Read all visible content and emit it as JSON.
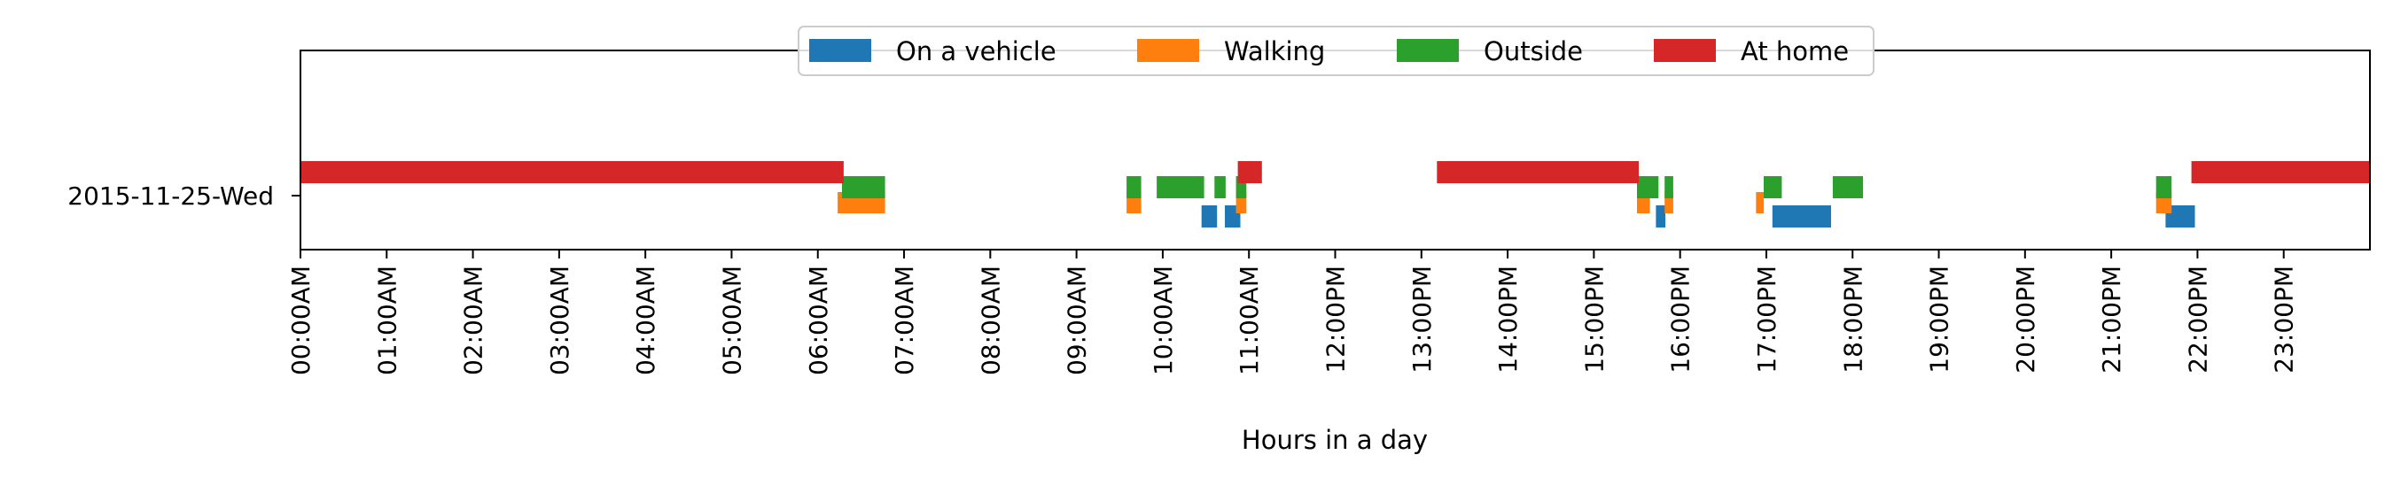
{
  "chart_data": {
    "type": "timeline",
    "xlabel": "Hours in a day",
    "ylabel": "",
    "xlim": [
      0,
      24
    ],
    "x_ticks": [
      {
        "value": 0,
        "label": "00:00AM"
      },
      {
        "value": 1,
        "label": "01:00AM"
      },
      {
        "value": 2,
        "label": "02:00AM"
      },
      {
        "value": 3,
        "label": "03:00AM"
      },
      {
        "value": 4,
        "label": "04:00AM"
      },
      {
        "value": 5,
        "label": "05:00AM"
      },
      {
        "value": 6,
        "label": "06:00AM"
      },
      {
        "value": 7,
        "label": "07:00AM"
      },
      {
        "value": 8,
        "label": "08:00AM"
      },
      {
        "value": 9,
        "label": "09:00AM"
      },
      {
        "value": 10,
        "label": "10:00AM"
      },
      {
        "value": 11,
        "label": "11:00AM"
      },
      {
        "value": 12,
        "label": "12:00PM"
      },
      {
        "value": 13,
        "label": "13:00PM"
      },
      {
        "value": 14,
        "label": "14:00PM"
      },
      {
        "value": 15,
        "label": "15:00PM"
      },
      {
        "value": 16,
        "label": "16:00PM"
      },
      {
        "value": 17,
        "label": "17:00PM"
      },
      {
        "value": 18,
        "label": "18:00PM"
      },
      {
        "value": 19,
        "label": "19:00PM"
      },
      {
        "value": 20,
        "label": "20:00PM"
      },
      {
        "value": 21,
        "label": "21:00PM"
      },
      {
        "value": 22,
        "label": "22:00PM"
      },
      {
        "value": 23,
        "label": "23:00PM"
      }
    ],
    "categories": [
      "2015-11-25-Wed"
    ],
    "legend_position": "top-center",
    "grid": false,
    "series": [
      {
        "name": "On a vehicle",
        "color": "#1f77b4",
        "intervals": [
          {
            "day": "2015-11-25-Wed",
            "start": 10.45,
            "end": 10.63
          },
          {
            "day": "2015-11-25-Wed",
            "start": 10.72,
            "end": 10.9
          },
          {
            "day": "2015-11-25-Wed",
            "start": 15.72,
            "end": 15.83
          },
          {
            "day": "2015-11-25-Wed",
            "start": 17.07,
            "end": 17.75
          },
          {
            "day": "2015-11-25-Wed",
            "start": 21.63,
            "end": 21.97
          }
        ]
      },
      {
        "name": "Walking",
        "color": "#ff7f0e",
        "intervals": [
          {
            "day": "2015-11-25-Wed",
            "start": 6.23,
            "end": 6.78
          },
          {
            "day": "2015-11-25-Wed",
            "start": 9.58,
            "end": 9.75
          },
          {
            "day": "2015-11-25-Wed",
            "start": 10.85,
            "end": 10.97
          },
          {
            "day": "2015-11-25-Wed",
            "start": 15.5,
            "end": 15.65
          },
          {
            "day": "2015-11-25-Wed",
            "start": 15.82,
            "end": 15.92
          },
          {
            "day": "2015-11-25-Wed",
            "start": 16.88,
            "end": 16.97
          },
          {
            "day": "2015-11-25-Wed",
            "start": 21.52,
            "end": 21.7
          }
        ]
      },
      {
        "name": "Outside",
        "color": "#2ca02c",
        "intervals": [
          {
            "day": "2015-11-25-Wed",
            "start": 6.28,
            "end": 6.78
          },
          {
            "day": "2015-11-25-Wed",
            "start": 9.58,
            "end": 9.75
          },
          {
            "day": "2015-11-25-Wed",
            "start": 9.93,
            "end": 10.48
          },
          {
            "day": "2015-11-25-Wed",
            "start": 10.6,
            "end": 10.73
          },
          {
            "day": "2015-11-25-Wed",
            "start": 10.85,
            "end": 10.97
          },
          {
            "day": "2015-11-25-Wed",
            "start": 15.5,
            "end": 15.75
          },
          {
            "day": "2015-11-25-Wed",
            "start": 15.82,
            "end": 15.92
          },
          {
            "day": "2015-11-25-Wed",
            "start": 16.97,
            "end": 17.18
          },
          {
            "day": "2015-11-25-Wed",
            "start": 17.77,
            "end": 18.12
          },
          {
            "day": "2015-11-25-Wed",
            "start": 21.52,
            "end": 21.7
          }
        ]
      },
      {
        "name": "At home",
        "color": "#d62728",
        "intervals": [
          {
            "day": "2015-11-25-Wed",
            "start": 0.0,
            "end": 6.3
          },
          {
            "day": "2015-11-25-Wed",
            "start": 10.87,
            "end": 11.15
          },
          {
            "day": "2015-11-25-Wed",
            "start": 13.18,
            "end": 15.52
          },
          {
            "day": "2015-11-25-Wed",
            "start": 21.93,
            "end": 24.0
          }
        ]
      }
    ]
  }
}
